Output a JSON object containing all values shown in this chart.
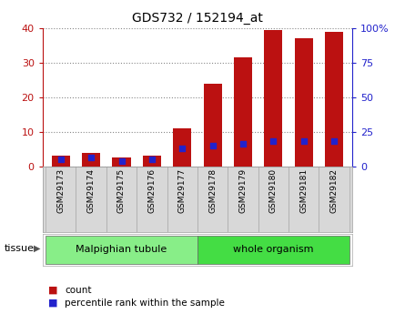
{
  "title": "GDS732 / 152194_at",
  "samples": [
    "GSM29173",
    "GSM29174",
    "GSM29175",
    "GSM29176",
    "GSM29177",
    "GSM29178",
    "GSM29179",
    "GSM29180",
    "GSM29181",
    "GSM29182"
  ],
  "counts": [
    3.0,
    4.0,
    2.5,
    3.0,
    11.0,
    24.0,
    31.5,
    39.5,
    37.0,
    39.0
  ],
  "percentiles": [
    5.0,
    6.5,
    4.0,
    5.5,
    13.0,
    15.0,
    16.5,
    18.5,
    18.5,
    18.5
  ],
  "groups": [
    {
      "label": "Malpighian tubule",
      "start": 0,
      "end": 4,
      "color": "#88ee88"
    },
    {
      "label": "whole organism",
      "start": 5,
      "end": 9,
      "color": "#44dd44"
    }
  ],
  "bar_color": "#bb1111",
  "dot_color": "#2222cc",
  "ylim_left": [
    0,
    40
  ],
  "ylim_right": [
    0,
    100
  ],
  "yticks_left": [
    0,
    10,
    20,
    30,
    40
  ],
  "yticks_right": [
    0,
    25,
    50,
    75,
    100
  ],
  "grid_color": "#888888",
  "cell_bg": "#d8d8d8",
  "plot_bg": "#ffffff",
  "tissue_label": "tissue",
  "legend_count": "count",
  "legend_pct": "percentile rank within the sample"
}
